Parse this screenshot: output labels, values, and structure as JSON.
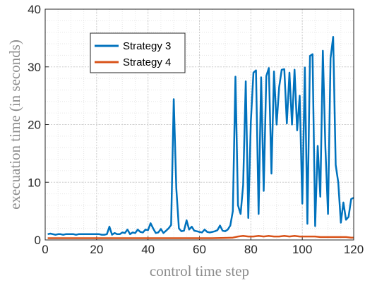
{
  "chart_data": {
    "type": "line",
    "xlabel": "control time step",
    "ylabel": "execuation time (in seconds)",
    "xlim": [
      0,
      120
    ],
    "ylim": [
      0,
      40
    ],
    "xticks": [
      0,
      20,
      40,
      60,
      80,
      100,
      120
    ],
    "yticks": [
      0,
      10,
      20,
      30,
      40
    ],
    "grid": true,
    "minor_grid": true,
    "legend_position": "upper-left",
    "series": [
      {
        "name": "Strategy 3",
        "color": "#0072BD",
        "x": [
          1,
          2,
          3,
          4,
          5,
          6,
          7,
          8,
          9,
          10,
          11,
          12,
          13,
          14,
          15,
          16,
          17,
          18,
          19,
          20,
          21,
          22,
          23,
          24,
          25,
          26,
          27,
          28,
          29,
          30,
          31,
          32,
          33,
          34,
          35,
          36,
          37,
          38,
          39,
          40,
          41,
          42,
          43,
          44,
          45,
          46,
          47,
          48,
          49,
          50,
          51,
          52,
          53,
          54,
          55,
          56,
          57,
          58,
          59,
          60,
          61,
          62,
          63,
          64,
          65,
          66,
          67,
          68,
          69,
          70,
          71,
          72,
          73,
          74,
          75,
          76,
          77,
          78,
          79,
          80,
          81,
          82,
          83,
          84,
          85,
          86,
          87,
          88,
          89,
          90,
          91,
          92,
          93,
          94,
          95,
          96,
          97,
          98,
          99,
          100,
          101,
          102,
          103,
          104,
          105,
          106,
          107,
          108,
          109,
          110,
          111,
          112,
          113,
          114,
          115,
          116,
          117,
          118,
          119,
          120
        ],
        "y": [
          1.0,
          1.1,
          1.0,
          0.9,
          1.0,
          1.0,
          0.9,
          1.0,
          1.0,
          1.0,
          1.0,
          0.9,
          1.0,
          1.0,
          1.0,
          1.0,
          1.0,
          1.0,
          1.0,
          1.0,
          1.0,
          0.9,
          0.9,
          1.0,
          2.3,
          0.9,
          1.2,
          1.0,
          1.0,
          1.3,
          1.2,
          1.8,
          1.0,
          1.3,
          1.2,
          1.8,
          1.4,
          1.3,
          1.8,
          1.7,
          2.9,
          2.0,
          1.2,
          1.3,
          1.9,
          1.2,
          1.6,
          2.0,
          2.6,
          24.4,
          9.0,
          2.0,
          1.5,
          1.6,
          3.4,
          1.8,
          2.3,
          1.6,
          1.5,
          1.4,
          1.3,
          1.8,
          1.4,
          1.3,
          1.4,
          1.5,
          1.7,
          2.5,
          1.6,
          1.5,
          1.8,
          2.5,
          5.0,
          28.3,
          6.0,
          4.5,
          9.5,
          27.5,
          3.8,
          20.5,
          29.0,
          29.4,
          4.5,
          28.2,
          8.5,
          28.4,
          29.8,
          11.5,
          29.2,
          20.0,
          26.5,
          29.5,
          29.6,
          20.2,
          29.0,
          20.0,
          29.5,
          19.0,
          25.0,
          6.3,
          29.9,
          2.8,
          31.9,
          32.2,
          2.4,
          16.3,
          7.5,
          32.8,
          16.0,
          4.5,
          31.5,
          35.2,
          13.0,
          10.0,
          3.0,
          6.5,
          3.5,
          4.0,
          7.1,
          7.3
        ]
      },
      {
        "name": "Strategy 4",
        "color": "#D95319",
        "x": [
          1,
          5,
          10,
          15,
          20,
          25,
          30,
          35,
          40,
          45,
          50,
          55,
          60,
          65,
          70,
          73,
          75,
          77,
          79,
          81,
          83,
          85,
          87,
          89,
          91,
          93,
          95,
          97,
          99,
          101,
          103,
          105,
          107,
          109,
          111,
          113,
          115,
          117,
          119,
          120
        ],
        "y": [
          0.3,
          0.3,
          0.3,
          0.3,
          0.3,
          0.3,
          0.3,
          0.3,
          0.3,
          0.3,
          0.3,
          0.3,
          0.3,
          0.3,
          0.35,
          0.4,
          0.6,
          0.7,
          0.6,
          0.6,
          0.7,
          0.6,
          0.7,
          0.6,
          0.6,
          0.7,
          0.6,
          0.7,
          0.6,
          0.6,
          0.6,
          0.6,
          0.5,
          0.5,
          0.5,
          0.5,
          0.5,
          0.5,
          0.4,
          0.4
        ]
      }
    ]
  }
}
